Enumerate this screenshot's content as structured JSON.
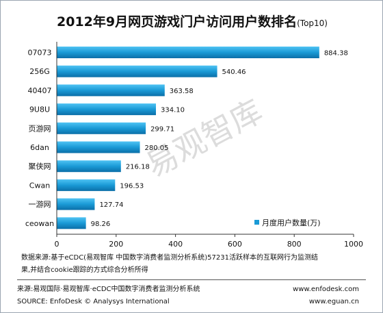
{
  "title": "2012年9月网页游戏门户访问用户数排名",
  "subtitle": "(Top10)",
  "watermark": "易观智库",
  "chart_data": {
    "type": "bar",
    "orientation": "horizontal",
    "title": "2012年9月网页游戏门户访问用户数排名(Top10)",
    "categories": [
      "07073",
      "256G",
      "40407",
      "9U8U",
      "页游网",
      "6dan",
      "聚侠网",
      "Cwan",
      "一游网",
      "ceowan"
    ],
    "series": [
      {
        "name": "月度用户数量(万)",
        "values": [
          884.38,
          540.46,
          363.58,
          334.1,
          299.71,
          280.05,
          216.18,
          196.53,
          127.74,
          98.26
        ]
      }
    ],
    "data_labels": [
      "884.38",
      "540.46",
      "363.58",
      "334.10",
      "299.71",
      "280.05",
      "216.18",
      "196.53",
      "127.74",
      "98.26"
    ],
    "xlim": [
      0,
      1000
    ],
    "xticks": [
      0,
      200,
      400,
      600,
      800,
      1000
    ],
    "grid": false,
    "legend_position": "bottom-right",
    "bar_color": "#1a9ad6"
  },
  "note": {
    "line1": "数据来源:基于eCDC(易观智库 中国数字消费者监测分析系统)57231活跃样本的互联网行为监测结",
    "line2": "果,并结合cookie跟踪的方式综合分析所得"
  },
  "footer": {
    "source_cn": "来源:易观国际·易观智库·eCDC中国数字消费者监测分析系统",
    "url1": "www.enfodesk.com",
    "source_en": "SOURCE: EnfoDesk © Analysys International",
    "url2": "www.eguan.cn"
  }
}
